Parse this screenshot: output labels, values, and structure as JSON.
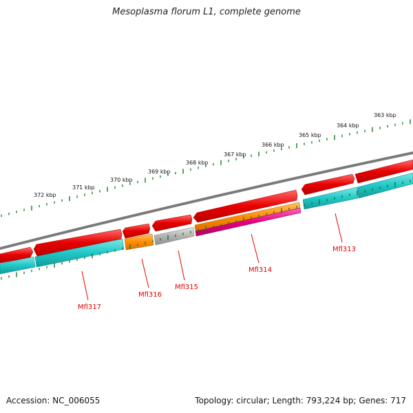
{
  "title": "Mesoplasma florum L1, complete genome",
  "footer": {
    "accession": "Accession: NC_006055",
    "summary": "Topology: circular; Length: 793,224 bp; Genes: 717"
  },
  "colors": {
    "backbone": "#7a7a7a",
    "forward_gene": "#e80000",
    "cds_band": "#21c7c7",
    "orange_feature": "#ff8c00",
    "gray_feature": "#b3b3b3",
    "magenta_feature": "#e6007e",
    "tick": "#0f7a1e",
    "label": "#e10000"
  },
  "kbp_labels": [
    "363 kbp",
    "364 kbp",
    "365 kbp",
    "366 kbp",
    "367 kbp",
    "368 kbp",
    "369 kbp",
    "370 kbp",
    "371 kbp",
    "372 kbp"
  ],
  "gene_labels": [
    "Mfl313",
    "Mfl314",
    "Mfl315",
    "Mfl316",
    "Mfl317"
  ]
}
